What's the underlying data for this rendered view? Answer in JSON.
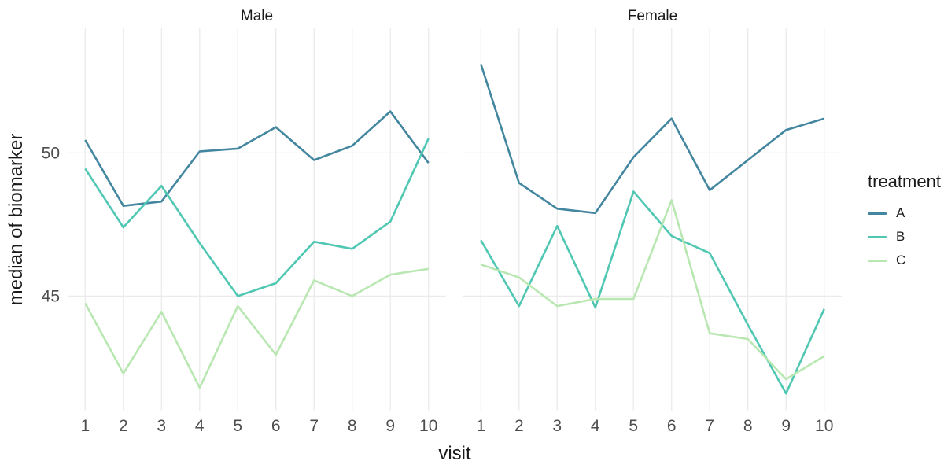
{
  "chart_data": {
    "type": "line",
    "x": [
      1,
      2,
      3,
      4,
      5,
      6,
      7,
      8,
      9,
      10
    ],
    "xlabel": "visit",
    "ylabel": "median of biomarker",
    "y_breaks": [
      45,
      50
    ],
    "ylim": [
      41.0,
      54.35
    ],
    "grid": "major-only",
    "facets": [
      {
        "label": "Male",
        "series": [
          {
            "name": "A",
            "values": [
              50.45,
              48.15,
              48.3,
              50.05,
              50.15,
              50.9,
              49.75,
              50.25,
              51.45,
              49.65
            ]
          },
          {
            "name": "B",
            "values": [
              49.45,
              47.4,
              48.85,
              46.85,
              45.0,
              45.45,
              46.9,
              46.65,
              47.6,
              50.5
            ]
          },
          {
            "name": "C",
            "values": [
              44.75,
              42.3,
              44.45,
              41.8,
              44.65,
              42.95,
              45.55,
              45.0,
              45.75,
              45.95
            ]
          }
        ]
      },
      {
        "label": "Female",
        "series": [
          {
            "name": "A",
            "values": [
              53.1,
              48.95,
              48.05,
              47.9,
              49.85,
              51.2,
              48.7,
              49.75,
              50.8,
              51.2
            ]
          },
          {
            "name": "B",
            "values": [
              46.95,
              44.65,
              47.45,
              44.6,
              48.65,
              47.1,
              46.5,
              44.0,
              41.6,
              44.55
            ]
          },
          {
            "name": "C",
            "values": [
              46.1,
              45.65,
              44.65,
              44.9,
              44.9,
              48.35,
              43.7,
              43.5,
              42.1,
              42.9
            ]
          }
        ]
      }
    ],
    "legend": {
      "title": "treatment",
      "position": "right",
      "entries": [
        {
          "label": "A",
          "color": "#43869f"
        },
        {
          "label": "B",
          "color": "#4fc7b3"
        },
        {
          "label": "C",
          "color": "#b9e7b1"
        }
      ]
    },
    "colors": {
      "background": "#ffffff",
      "gridline": "#ebebeb",
      "tick_text": "#4d4d4d",
      "title_text": "#1a1a1a"
    }
  }
}
